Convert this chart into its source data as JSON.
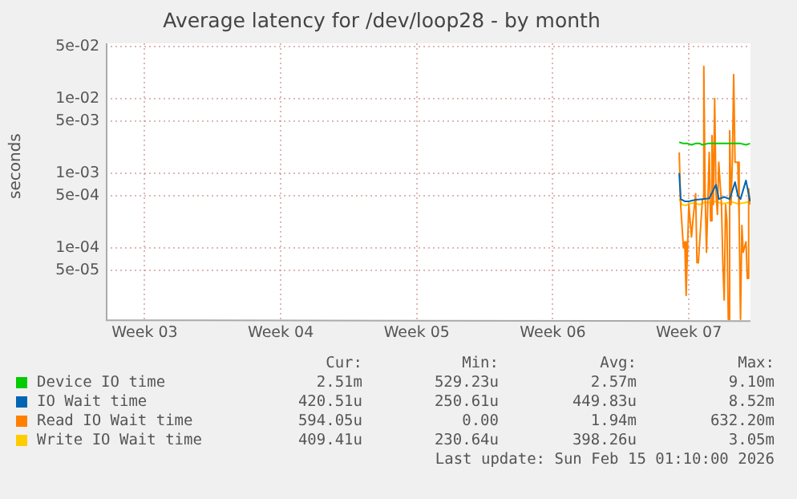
{
  "chart_data": {
    "type": "line",
    "title": "Average latency for /dev/loop28 - by month",
    "ylabel": "seconds",
    "log": "y",
    "grid": true,
    "legend": "bottom",
    "marker": "none",
    "line_style": "solid",
    "xlim": [
      "2026-01-12T21:00",
      "2026-02-15T01:10"
    ],
    "xticks": [
      {
        "value": "2026-01-14T21:00",
        "label": "Week 03"
      },
      {
        "value": "2026-01-21T21:00",
        "label": "Week 04"
      },
      {
        "value": "2026-01-28T21:00",
        "label": "Week 05"
      },
      {
        "value": "2026-02-04T21:00",
        "label": "Week 06"
      },
      {
        "value": "2026-02-11T21:00",
        "label": "Week 07"
      }
    ],
    "ylim": [
      1.07e-05,
      0.055
    ],
    "yticks": [
      {
        "value": 0.05,
        "label": "5e-02"
      },
      {
        "value": 0.01,
        "label": "1e-02"
      },
      {
        "value": 0.005,
        "label": "5e-03"
      },
      {
        "value": 0.001,
        "label": "1e-03"
      },
      {
        "value": 0.0005,
        "label": "5e-04"
      },
      {
        "value": 0.0001,
        "label": "1e-04"
      },
      {
        "value": 5e-05,
        "label": "5e-05"
      }
    ],
    "series": [
      {
        "name": "Device IO time",
        "color": "#00cc00",
        "x": [
          "2026-02-11T09:10",
          "2026-02-11T14:20",
          "2026-02-11T19:20",
          "2026-02-12T00:20",
          "2026-02-12T05:25",
          "2026-02-12T10:25",
          "2026-02-12T13:50",
          "2026-02-12T20:30",
          "2026-02-13T03:15",
          "2026-02-13T10:00",
          "2026-02-13T16:40",
          "2026-02-13T23:25",
          "2026-02-14T06:05",
          "2026-02-14T12:50",
          "2026-02-14T19:35",
          "2026-02-15T00:35"
        ],
        "values": [
          0.0026,
          0.0025,
          0.0025,
          0.0024,
          0.0025,
          0.0025,
          0.0024,
          0.0025,
          0.0025,
          0.0025,
          0.0025,
          0.0025,
          0.0025,
          0.0025,
          0.0024,
          0.0025
        ]
      },
      {
        "name": "IO Wait time",
        "color": "#0066b3",
        "x": [
          "2026-02-11T09:10",
          "2026-02-11T10:55",
          "2026-02-11T16:00",
          "2026-02-11T21:00",
          "2026-02-12T05:25",
          "2026-02-12T13:50",
          "2026-02-12T22:10",
          "2026-02-13T06:35",
          "2026-02-13T10:00",
          "2026-02-13T16:40",
          "2026-02-13T23:25",
          "2026-02-14T06:05",
          "2026-02-14T09:30",
          "2026-02-14T12:50",
          "2026-02-14T19:35",
          "2026-02-15T00:35"
        ],
        "values": [
          0.001,
          0.00045,
          0.00042,
          0.00042,
          0.00044,
          0.00045,
          0.00046,
          0.0007,
          0.00045,
          0.00048,
          0.00045,
          0.00076,
          0.0005,
          0.00045,
          0.0008,
          0.00042
        ]
      },
      {
        "name": "Read IO Wait time",
        "color": "#ff8000",
        "x": [
          "2026-02-11T09:10",
          "2026-02-11T10:55",
          "2026-02-11T14:20",
          "2026-02-11T16:00",
          "2026-02-11T17:40",
          "2026-02-11T21:00",
          "2026-02-12T00:20",
          "2026-02-12T02:00",
          "2026-02-12T05:25",
          "2026-02-12T07:05",
          "2026-02-12T08:45",
          "2026-02-12T12:05",
          "2026-02-12T13:50",
          "2026-02-12T15:30",
          "2026-02-12T17:10",
          "2026-02-12T18:50",
          "2026-02-12T22:10",
          "2026-02-12T23:55",
          "2026-02-13T01:35",
          "2026-02-13T03:15",
          "2026-02-13T04:55",
          "2026-02-13T06:35",
          "2026-02-13T08:20",
          "2026-02-13T10:00",
          "2026-02-13T13:20",
          "2026-02-13T15:00",
          "2026-02-13T16:40",
          "2026-02-13T18:25",
          "2026-02-13T20:00",
          "2026-02-13T21:45",
          "2026-02-13T23:25",
          "2026-02-14T01:05",
          "2026-02-14T02:45",
          "2026-02-14T04:25",
          "2026-02-14T06:05",
          "2026-02-14T09:30",
          "2026-02-14T11:10",
          "2026-02-14T12:50",
          "2026-02-14T14:30",
          "2026-02-14T16:10",
          "2026-02-14T19:35",
          "2026-02-14T21:15",
          "2026-02-14T22:55",
          "2026-02-15T00:35"
        ],
        "values": [
          0.0019,
          0.00038,
          0.0001,
          0.00012,
          2.3e-05,
          0.00038,
          0.00014,
          0.00023,
          0.00053,
          6.3e-05,
          6.3e-05,
          0.00023,
          0.00045,
          0.027,
          0.00053,
          8.7e-05,
          0.0019,
          0.00023,
          0.0032,
          0.00038,
          0.01,
          0.00053,
          0.00028,
          0.0014,
          0.00038,
          6.3e-05,
          2e-05,
          0.00038,
          0.00023,
          1.1e-05,
          0.0037,
          0.00038,
          0.0014,
          0.021,
          0.0014,
          0.0014,
          0.00023,
          1.1e-05,
          0.0002,
          8.7e-05,
          0.00012,
          3.9e-05,
          0.00062,
          0.00038
        ]
      },
      {
        "name": "Write IO Wait time",
        "color": "#ffcc00",
        "x": [
          "2026-02-11T09:10",
          "2026-02-11T12:35",
          "2026-02-11T17:40",
          "2026-02-11T21:00",
          "2026-02-12T03:40",
          "2026-02-12T10:25",
          "2026-02-12T17:10",
          "2026-02-12T23:55",
          "2026-02-13T06:35",
          "2026-02-13T13:20",
          "2026-02-13T20:00",
          "2026-02-14T02:45",
          "2026-02-14T09:30",
          "2026-02-14T16:10",
          "2026-02-14T21:15",
          "2026-02-15T00:35"
        ],
        "values": [
          0.00045,
          0.00038,
          0.00037,
          0.00039,
          0.0004,
          0.00038,
          0.00041,
          0.0004,
          0.00042,
          0.00039,
          0.0004,
          0.00041,
          0.00039,
          0.0004,
          0.00041,
          0.0004
        ]
      }
    ],
    "annotations": [
      "Cur:",
      "Min:",
      "Avg:",
      "Max:",
      "2.51m",
      "529.23u",
      "2.57m",
      "9.10m",
      "420.51u",
      "250.61u",
      "449.83u",
      "8.52m",
      "594.05u",
      "0.00",
      "1.94m",
      "632.20m",
      "409.41u",
      "230.64u",
      "398.26u",
      "3.05m",
      "Last update: Sun Feb 15 01:10:00 2026"
    ]
  }
}
